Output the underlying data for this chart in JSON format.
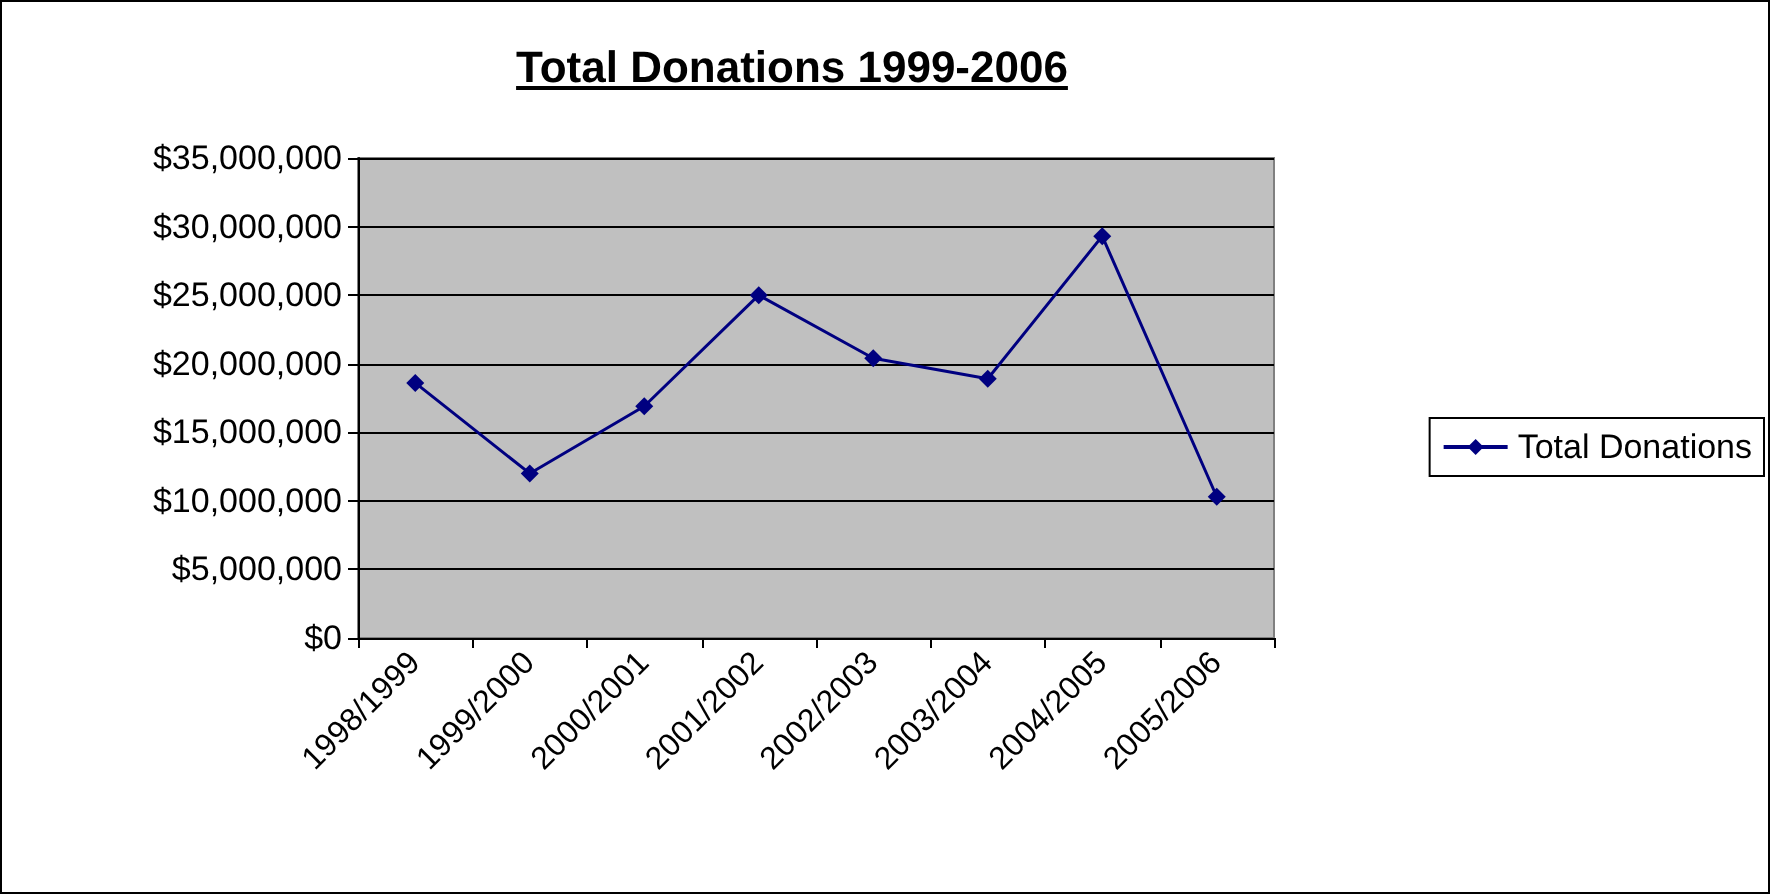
{
  "chart_data": {
    "type": "line",
    "title": "Total Donations 1999-2006",
    "categories": [
      "1998/1999",
      "1999/2000",
      "2000/2001",
      "2001/2002",
      "2002/2003",
      "2003/2004",
      "2004/2005",
      "2005/2006"
    ],
    "series": [
      {
        "name": "Total Donations",
        "color": "#000080",
        "values": [
          18600000,
          12000000,
          16900000,
          25000000,
          20400000,
          18900000,
          29300000,
          10300000
        ]
      }
    ],
    "ylim": [
      0,
      35000000
    ],
    "yticks": [
      {
        "value": 0,
        "label": "$0"
      },
      {
        "value": 5000000,
        "label": "$5,000,000"
      },
      {
        "value": 10000000,
        "label": "$10,000,000"
      },
      {
        "value": 15000000,
        "label": "$15,000,000"
      },
      {
        "value": 20000000,
        "label": "$20,000,000"
      },
      {
        "value": 25000000,
        "label": "$25,000,000"
      },
      {
        "value": 30000000,
        "label": "$30,000,000"
      },
      {
        "value": 35000000,
        "label": "$35,000,000"
      }
    ],
    "grid": "y",
    "legend": "right",
    "marker": "diamond",
    "line_style": "solid"
  }
}
